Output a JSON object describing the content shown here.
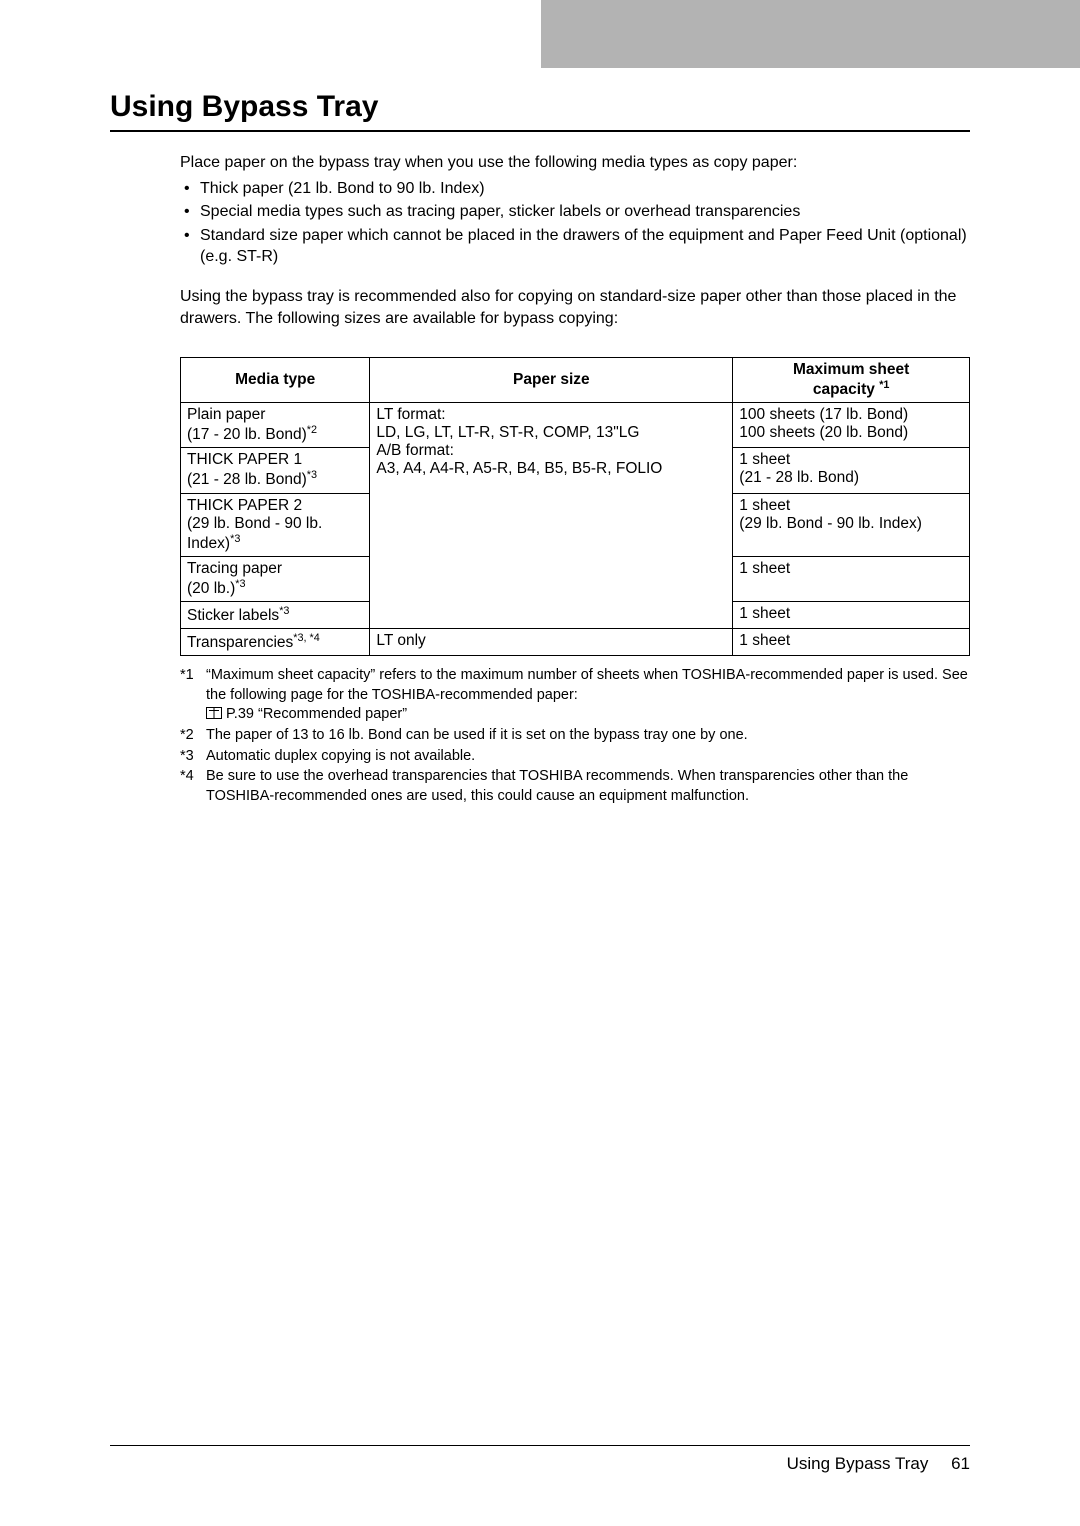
{
  "heading": "Using Bypass Tray",
  "intro": "Place paper on the bypass tray when you use the following media types as copy paper:",
  "bullets": [
    "Thick paper (21 lb. Bond to 90 lb. Index)",
    "Special media types such as tracing paper, sticker labels or overhead transparencies",
    "Standard size paper which cannot be placed in the drawers of the equipment and Paper Feed Unit (optional) (e.g. ST-R)"
  ],
  "para2": "Using the bypass tray is recommended also for copying on standard-size paper other than those placed in the drawers. The following sizes are available for bypass copying:",
  "table": {
    "headers": {
      "media": "Media type",
      "paper": "Paper size",
      "max_line1": "Maximum sheet",
      "max_line2_prefix": "capacity ",
      "max_sup": "*1"
    },
    "paper_lines": [
      "LT format:",
      "LD, LG, LT, LT-R, ST-R, COMP, 13\"LG",
      "A/B format:",
      "A3, A4, A4-R, A5-R, B4, B5, B5-R, FOLIO"
    ],
    "rows": [
      {
        "media_line1": "Plain paper",
        "media_line2_prefix": "(17 - 20 lb. Bond)",
        "media_sup": "*2",
        "max_line1": "100 sheets (17 lb. Bond)",
        "max_line2": "100 sheets (20 lb. Bond)"
      },
      {
        "media_line1": "THICK PAPER 1",
        "media_line2_prefix": "(21 - 28 lb. Bond)",
        "media_sup": "*3",
        "max_line1": "1 sheet",
        "max_line2": "(21 - 28 lb. Bond)"
      },
      {
        "media_line1": "THICK PAPER 2",
        "media_line2_prefix": "(29 lb. Bond - 90 lb. Index)",
        "media_sup": "*3",
        "max_line1": "1 sheet",
        "max_line2": "(29 lb. Bond - 90 lb. Index)"
      },
      {
        "media_line1": "Tracing paper",
        "media_line2_prefix": "(20 lb.)",
        "media_sup": "*3",
        "max_line1": "1 sheet",
        "max_line2": ""
      },
      {
        "media_line1_prefix": "Sticker labels",
        "media_sup1": "*3",
        "max_line1": "1 sheet"
      },
      {
        "media_line1_prefix": "Transparencies",
        "media_sup1": "*3, *4",
        "paper": "LT only",
        "max_line1": "1 sheet"
      }
    ]
  },
  "footnotes": [
    {
      "mark": "*1",
      "text": "“Maximum sheet capacity” refers to the maximum number of sheets when TOSHIBA-recommended paper is used. See the following page for the TOSHIBA-recommended paper:",
      "ref": "P.39 “Recommended paper”",
      "has_ref": true
    },
    {
      "mark": "*2",
      "text": "The paper of 13 to 16 lb. Bond can be used if it is set on the bypass tray one by one.",
      "has_ref": false
    },
    {
      "mark": "*3",
      "text": "Automatic duplex copying is not available.",
      "has_ref": false
    },
    {
      "mark": "*4",
      "text": "Be sure to use the overhead transparencies that TOSHIBA recommends. When transparencies other than the TOSHIBA-recommended ones are used, this could cause an equipment malfunction.",
      "has_ref": false
    }
  ],
  "footer": {
    "title": "Using Bypass Tray",
    "page": "61"
  }
}
